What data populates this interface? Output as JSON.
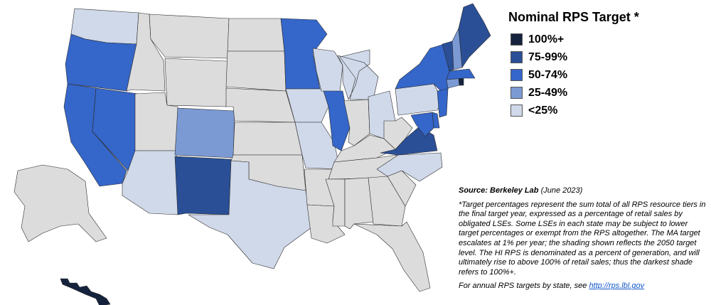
{
  "legend": {
    "title": "Nominal RPS Target *",
    "items": [
      {
        "label": "100%+",
        "color": "#15223d"
      },
      {
        "label": "75-99%",
        "color": "#2a4f96"
      },
      {
        "label": "50-74%",
        "color": "#3566c9"
      },
      {
        "label": "25-49%",
        "color": "#7b9ad4"
      },
      {
        "label": "<25%",
        "color": "#d0d9ea"
      }
    ],
    "no_rps_color": "#dcdcdc"
  },
  "states": {
    "WA": "<25%",
    "OR": "50-74%",
    "CA": "50-74%",
    "NV": "50-74%",
    "AZ": "<25%",
    "CO": "25-49%",
    "NM": "75-99%",
    "TX": "<25%",
    "MN": "50-74%",
    "IA": "<25%",
    "MO": "<25%",
    "WI": "<25%",
    "IL": "50-74%",
    "MI": "<25%",
    "OH": "<25%",
    "PA": "<25%",
    "NY": "50-74%",
    "VT": "75-99%",
    "NH": "25-49%",
    "ME": "75-99%",
    "MA": "50-74%",
    "RI": "100%+",
    "CT": "25-49%",
    "NJ": "50-74%",
    "DE": "50-74%",
    "MD": "50-74%",
    "VA": "75-99%",
    "NC": "<25%",
    "HI": "100%+"
  },
  "notes": {
    "source_label": "Source: Berkeley Lab",
    "source_date": "(June 2023)",
    "footnote": "*Target percentages represent the sum total of all RPS resource tiers in the final target year, expressed as a percentage of retail sales by obligated LSEs. Some LSEs in each state may be subject to lower target percentages or exempt from the RPS altogether. The MA target escalates at 1% per year; the shading shown reflects the 2050 target level. The HI RPS is denominated as a percent of generation, and will ultimately rise to above 100% of retail sales; thus the darkest shade refers to 100%+.",
    "link_prefix": "For annual RPS targets by state, see ",
    "link_text": "http://rps.lbl.gov"
  }
}
